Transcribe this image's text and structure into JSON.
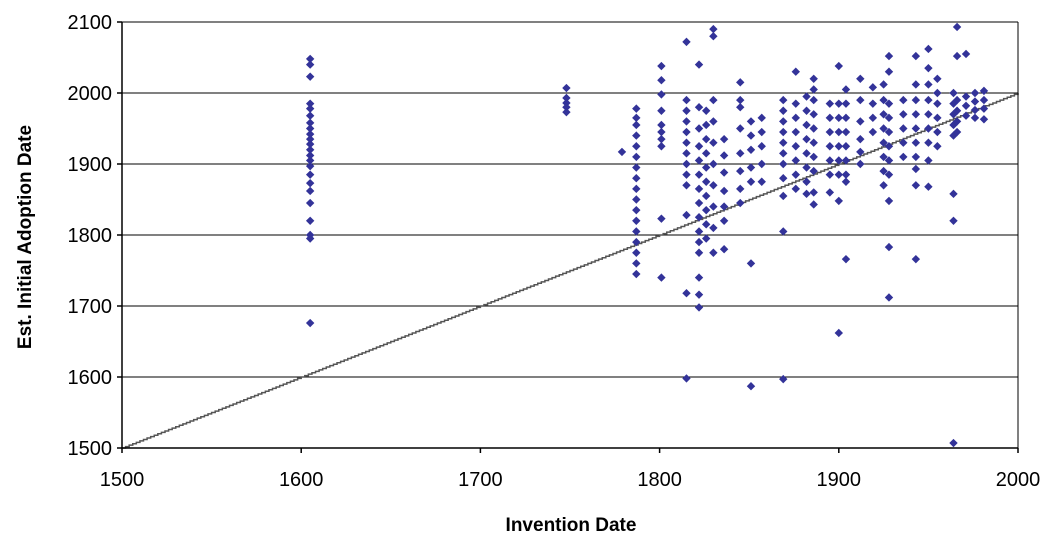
{
  "chart_data": {
    "type": "scatter",
    "xlabel": "Invention Date",
    "ylabel": "Est. Initial Adoption Date",
    "xlim": [
      1500,
      2000
    ],
    "ylim": [
      1500,
      2100
    ],
    "xticks": [
      1500,
      1600,
      1700,
      1800,
      1900,
      2000
    ],
    "yticks": [
      1500,
      1600,
      1700,
      1800,
      1900,
      2000,
      2100
    ],
    "x_tick_labels": [
      "1500",
      "1600",
      "1700",
      "1800",
      "1900",
      "2000"
    ],
    "y_tick_labels": [
      "1500",
      "1600",
      "1700",
      "1800",
      "1900",
      "2000",
      "2100"
    ],
    "grid": "horizontal",
    "legend": "none",
    "reference_line": {
      "style": "y = x (step line)",
      "from": [
        1500,
        1500
      ],
      "to": [
        2000,
        2000
      ],
      "color": "#555555"
    },
    "marker": "diamond",
    "colors": {
      "points": "#333399",
      "grid": "#000000",
      "reference": "#555555"
    },
    "series": [
      {
        "points": [
          [
            1605,
            2048
          ],
          [
            1605,
            2040
          ],
          [
            1605,
            2023
          ],
          [
            1605,
            1985
          ],
          [
            1605,
            1978
          ],
          [
            1605,
            1968
          ],
          [
            1605,
            1958
          ],
          [
            1605,
            1950
          ],
          [
            1605,
            1942
          ],
          [
            1605,
            1935
          ],
          [
            1605,
            1928
          ],
          [
            1605,
            1920
          ],
          [
            1605,
            1912
          ],
          [
            1605,
            1905
          ],
          [
            1605,
            1897
          ],
          [
            1605,
            1885
          ],
          [
            1605,
            1873
          ],
          [
            1605,
            1862
          ],
          [
            1605,
            1845
          ],
          [
            1605,
            1820
          ],
          [
            1605,
            1800
          ],
          [
            1605,
            1795
          ],
          [
            1605,
            1676
          ],
          [
            1748,
            2007
          ],
          [
            1748,
            1993
          ],
          [
            1748,
            1986
          ],
          [
            1748,
            1980
          ],
          [
            1748,
            1973
          ],
          [
            1779,
            1917
          ],
          [
            1787,
            1978
          ],
          [
            1787,
            1965
          ],
          [
            1787,
            1955
          ],
          [
            1787,
            1940
          ],
          [
            1787,
            1925
          ],
          [
            1787,
            1910
          ],
          [
            1787,
            1895
          ],
          [
            1787,
            1880
          ],
          [
            1787,
            1865
          ],
          [
            1787,
            1850
          ],
          [
            1787,
            1835
          ],
          [
            1787,
            1820
          ],
          [
            1787,
            1805
          ],
          [
            1787,
            1790
          ],
          [
            1787,
            1775
          ],
          [
            1787,
            1760
          ],
          [
            1787,
            1745
          ],
          [
            1801,
            2038
          ],
          [
            1801,
            2018
          ],
          [
            1801,
            1998
          ],
          [
            1801,
            1975
          ],
          [
            1801,
            1955
          ],
          [
            1801,
            1945
          ],
          [
            1801,
            1935
          ],
          [
            1801,
            1925
          ],
          [
            1801,
            1823
          ],
          [
            1801,
            1740
          ],
          [
            1815,
            2072
          ],
          [
            1815,
            1990
          ],
          [
            1815,
            1975
          ],
          [
            1815,
            1960
          ],
          [
            1815,
            1945
          ],
          [
            1815,
            1930
          ],
          [
            1815,
            1915
          ],
          [
            1815,
            1900
          ],
          [
            1815,
            1885
          ],
          [
            1815,
            1870
          ],
          [
            1815,
            1828
          ],
          [
            1815,
            1718
          ],
          [
            1815,
            1598
          ],
          [
            1822,
            2040
          ],
          [
            1822,
            1980
          ],
          [
            1822,
            1950
          ],
          [
            1822,
            1925
          ],
          [
            1822,
            1905
          ],
          [
            1822,
            1885
          ],
          [
            1822,
            1865
          ],
          [
            1822,
            1845
          ],
          [
            1822,
            1825
          ],
          [
            1822,
            1805
          ],
          [
            1822,
            1790
          ],
          [
            1822,
            1775
          ],
          [
            1822,
            1740
          ],
          [
            1822,
            1716
          ],
          [
            1822,
            1698
          ],
          [
            1826,
            1975
          ],
          [
            1826,
            1955
          ],
          [
            1826,
            1935
          ],
          [
            1826,
            1915
          ],
          [
            1826,
            1895
          ],
          [
            1826,
            1875
          ],
          [
            1826,
            1855
          ],
          [
            1826,
            1835
          ],
          [
            1826,
            1815
          ],
          [
            1826,
            1795
          ],
          [
            1830,
            2090
          ],
          [
            1830,
            2080
          ],
          [
            1830,
            1990
          ],
          [
            1830,
            1960
          ],
          [
            1830,
            1930
          ],
          [
            1830,
            1900
          ],
          [
            1830,
            1870
          ],
          [
            1830,
            1840
          ],
          [
            1830,
            1810
          ],
          [
            1830,
            1775
          ],
          [
            1836,
            1935
          ],
          [
            1836,
            1912
          ],
          [
            1836,
            1888
          ],
          [
            1836,
            1862
          ],
          [
            1836,
            1840
          ],
          [
            1836,
            1820
          ],
          [
            1836,
            1780
          ],
          [
            1845,
            2015
          ],
          [
            1845,
            1990
          ],
          [
            1845,
            1980
          ],
          [
            1845,
            1950
          ],
          [
            1845,
            1915
          ],
          [
            1845,
            1890
          ],
          [
            1845,
            1865
          ],
          [
            1845,
            1845
          ],
          [
            1851,
            1960
          ],
          [
            1851,
            1940
          ],
          [
            1851,
            1920
          ],
          [
            1851,
            1895
          ],
          [
            1851,
            1875
          ],
          [
            1851,
            1760
          ],
          [
            1851,
            1587
          ],
          [
            1857,
            1965
          ],
          [
            1857,
            1945
          ],
          [
            1857,
            1925
          ],
          [
            1857,
            1900
          ],
          [
            1857,
            1875
          ],
          [
            1869,
            1990
          ],
          [
            1869,
            1975
          ],
          [
            1869,
            1960
          ],
          [
            1869,
            1945
          ],
          [
            1869,
            1930
          ],
          [
            1869,
            1915
          ],
          [
            1869,
            1900
          ],
          [
            1869,
            1880
          ],
          [
            1869,
            1855
          ],
          [
            1869,
            1805
          ],
          [
            1869,
            1597
          ],
          [
            1876,
            2030
          ],
          [
            1876,
            1985
          ],
          [
            1876,
            1965
          ],
          [
            1876,
            1945
          ],
          [
            1876,
            1925
          ],
          [
            1876,
            1905
          ],
          [
            1876,
            1885
          ],
          [
            1876,
            1865
          ],
          [
            1882,
            1995
          ],
          [
            1882,
            1975
          ],
          [
            1882,
            1955
          ],
          [
            1882,
            1935
          ],
          [
            1882,
            1915
          ],
          [
            1882,
            1895
          ],
          [
            1882,
            1875
          ],
          [
            1882,
            1858
          ],
          [
            1886,
            2020
          ],
          [
            1886,
            2005
          ],
          [
            1886,
            1990
          ],
          [
            1886,
            1970
          ],
          [
            1886,
            1950
          ],
          [
            1886,
            1930
          ],
          [
            1886,
            1910
          ],
          [
            1886,
            1890
          ],
          [
            1886,
            1860
          ],
          [
            1886,
            1843
          ],
          [
            1895,
            1985
          ],
          [
            1895,
            1965
          ],
          [
            1895,
            1945
          ],
          [
            1895,
            1925
          ],
          [
            1895,
            1905
          ],
          [
            1895,
            1885
          ],
          [
            1895,
            1860
          ],
          [
            1900,
            2038
          ],
          [
            1900,
            1985
          ],
          [
            1900,
            1965
          ],
          [
            1900,
            1945
          ],
          [
            1900,
            1925
          ],
          [
            1900,
            1905
          ],
          [
            1900,
            1885
          ],
          [
            1900,
            1848
          ],
          [
            1900,
            1662
          ],
          [
            1904,
            2005
          ],
          [
            1904,
            1985
          ],
          [
            1904,
            1965
          ],
          [
            1904,
            1945
          ],
          [
            1904,
            1925
          ],
          [
            1904,
            1905
          ],
          [
            1904,
            1885
          ],
          [
            1904,
            1875
          ],
          [
            1904,
            1766
          ],
          [
            1912,
            2020
          ],
          [
            1912,
            1990
          ],
          [
            1912,
            1960
          ],
          [
            1912,
            1935
          ],
          [
            1912,
            1917
          ],
          [
            1912,
            1900
          ],
          [
            1919,
            2008
          ],
          [
            1919,
            1985
          ],
          [
            1919,
            1965
          ],
          [
            1919,
            1945
          ],
          [
            1925,
            2012
          ],
          [
            1925,
            1990
          ],
          [
            1925,
            1970
          ],
          [
            1925,
            1950
          ],
          [
            1925,
            1930
          ],
          [
            1925,
            1910
          ],
          [
            1925,
            1890
          ],
          [
            1925,
            1870
          ],
          [
            1928,
            2052
          ],
          [
            1928,
            2030
          ],
          [
            1928,
            1985
          ],
          [
            1928,
            1965
          ],
          [
            1928,
            1945
          ],
          [
            1928,
            1925
          ],
          [
            1928,
            1905
          ],
          [
            1928,
            1885
          ],
          [
            1928,
            1848
          ],
          [
            1928,
            1783
          ],
          [
            1928,
            1712
          ],
          [
            1936,
            1990
          ],
          [
            1936,
            1970
          ],
          [
            1936,
            1950
          ],
          [
            1936,
            1930
          ],
          [
            1936,
            1910
          ],
          [
            1943,
            2052
          ],
          [
            1943,
            2012
          ],
          [
            1943,
            1990
          ],
          [
            1943,
            1970
          ],
          [
            1943,
            1950
          ],
          [
            1943,
            1930
          ],
          [
            1943,
            1910
          ],
          [
            1943,
            1893
          ],
          [
            1943,
            1870
          ],
          [
            1943,
            1766
          ],
          [
            1950,
            2062
          ],
          [
            1950,
            2035
          ],
          [
            1950,
            2012
          ],
          [
            1950,
            1990
          ],
          [
            1950,
            1970
          ],
          [
            1950,
            1950
          ],
          [
            1950,
            1930
          ],
          [
            1950,
            1905
          ],
          [
            1950,
            1868
          ],
          [
            1955,
            2020
          ],
          [
            1955,
            2000
          ],
          [
            1955,
            1985
          ],
          [
            1955,
            1965
          ],
          [
            1955,
            1945
          ],
          [
            1955,
            1925
          ],
          [
            1964,
            2000
          ],
          [
            1964,
            1985
          ],
          [
            1964,
            1970
          ],
          [
            1964,
            1955
          ],
          [
            1964,
            1940
          ],
          [
            1964,
            1858
          ],
          [
            1964,
            1820
          ],
          [
            1964,
            1507
          ],
          [
            1966,
            2093
          ],
          [
            1966,
            2052
          ],
          [
            1966,
            1990
          ],
          [
            1966,
            1975
          ],
          [
            1966,
            1960
          ],
          [
            1966,
            1945
          ],
          [
            1971,
            2055
          ],
          [
            1971,
            1995
          ],
          [
            1971,
            1982
          ],
          [
            1971,
            1968
          ],
          [
            1976,
            2000
          ],
          [
            1976,
            1988
          ],
          [
            1976,
            1976
          ],
          [
            1976,
            1965
          ],
          [
            1981,
            2003
          ],
          [
            1981,
            1990
          ],
          [
            1981,
            1978
          ],
          [
            1981,
            1963
          ]
        ]
      }
    ]
  }
}
